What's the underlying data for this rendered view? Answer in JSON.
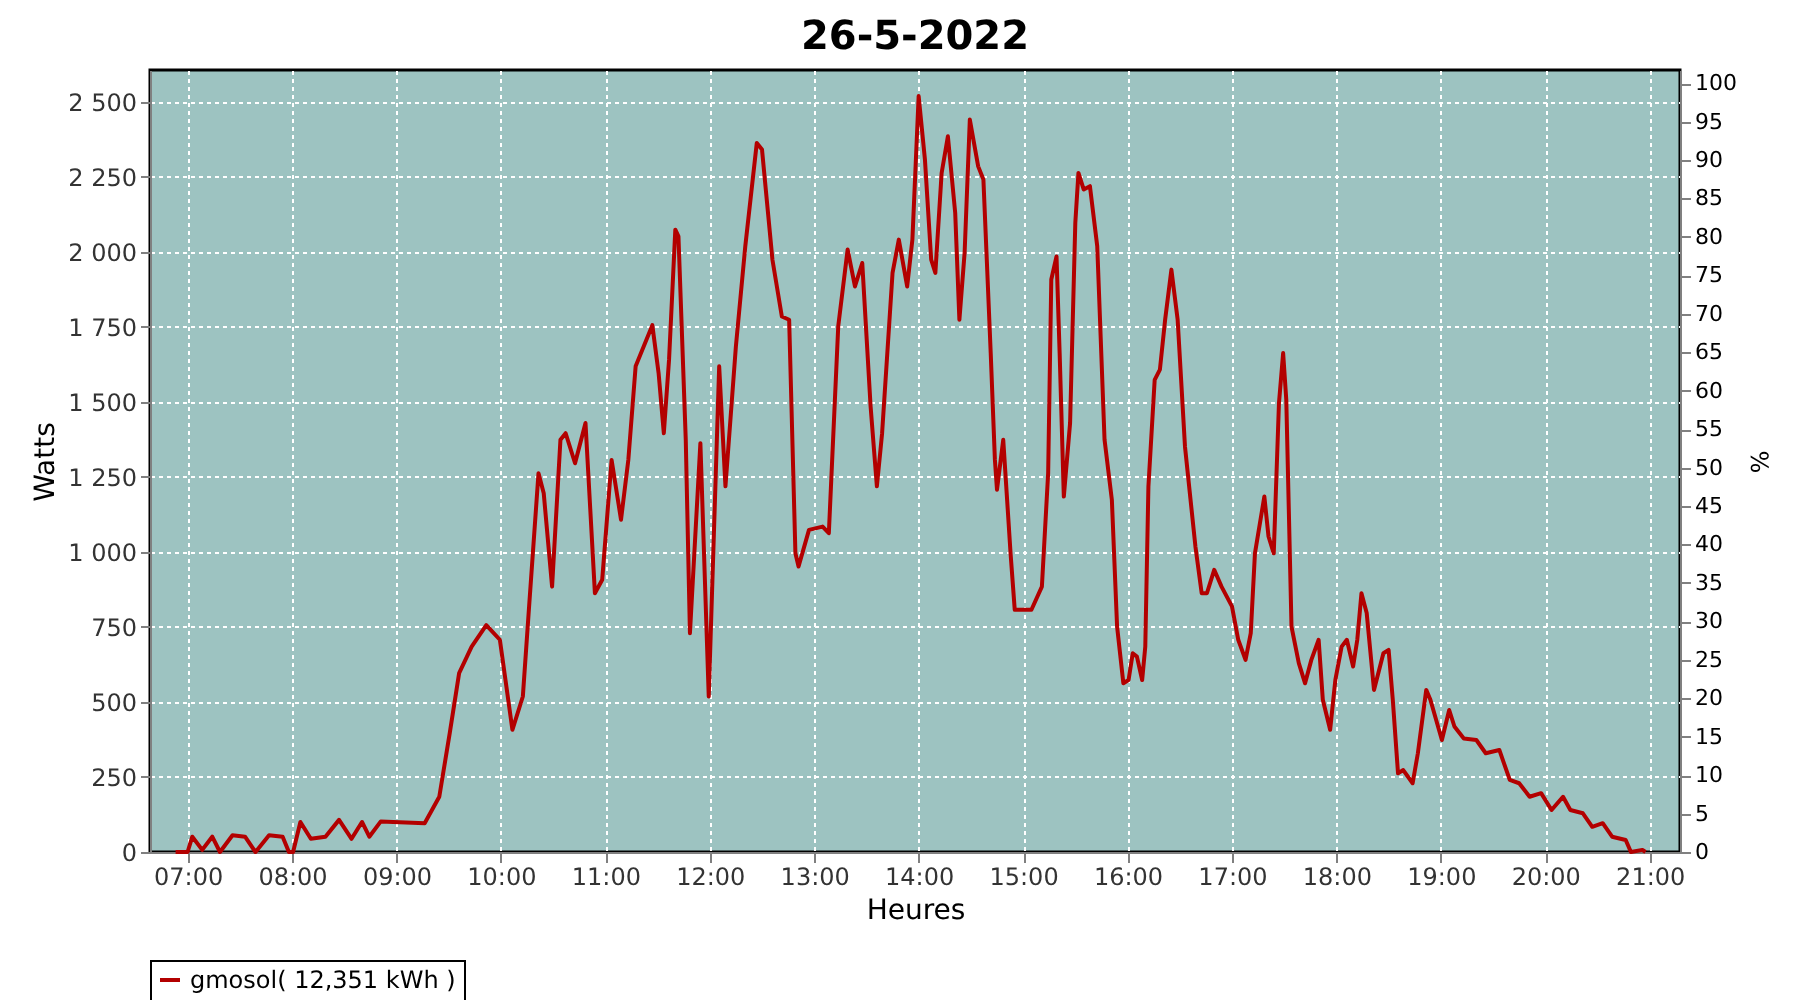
{
  "chart_data": {
    "type": "line",
    "title": "26-5-2022",
    "xlabel": "Heures",
    "ylabel": "Watts",
    "y2label": "%",
    "xlim": [
      6.64,
      21.29
    ],
    "xticks": [
      {
        "value": 7,
        "label": "07:00"
      },
      {
        "value": 8,
        "label": "08:00"
      },
      {
        "value": 9,
        "label": "09:00"
      },
      {
        "value": 10,
        "label": "10:00"
      },
      {
        "value": 11,
        "label": "11:00"
      },
      {
        "value": 12,
        "label": "12:00"
      },
      {
        "value": 13,
        "label": "13:00"
      },
      {
        "value": 14,
        "label": "14:00"
      },
      {
        "value": 15,
        "label": "15:00"
      },
      {
        "value": 16,
        "label": "16:00"
      },
      {
        "value": 17,
        "label": "17:00"
      },
      {
        "value": 18,
        "label": "18:00"
      },
      {
        "value": 19,
        "label": "19:00"
      },
      {
        "value": 20,
        "label": "20:00"
      },
      {
        "value": 21,
        "label": "21:00"
      }
    ],
    "ylim": [
      0,
      2605
    ],
    "yticks": [
      0,
      250,
      500,
      750,
      {
        "value": 1000,
        "label": "1 000"
      },
      {
        "value": 1250,
        "label": "1 250"
      },
      {
        "value": 1500,
        "label": "1 500"
      },
      {
        "value": 1750,
        "label": "1 750"
      },
      {
        "value": 2000,
        "label": "2 000"
      },
      {
        "value": 2250,
        "label": "2 250"
      },
      {
        "value": 2500,
        "label": "2 500"
      }
    ],
    "y2lim": [
      0,
      101.7
    ],
    "y2ticks": [
      0,
      5,
      10,
      15,
      20,
      25,
      30,
      35,
      40,
      45,
      50,
      55,
      60,
      65,
      70,
      75,
      80,
      85,
      90,
      95,
      100
    ],
    "grid": true,
    "legend": "bottom",
    "marker": "none",
    "line_style": "solid",
    "series": [
      {
        "name": "gmosol( 12,351 kWh )",
        "color": "#b30000",
        "x": [
          6.885,
          7.0,
          7.045,
          7.14,
          7.236,
          7.31,
          7.43,
          7.55,
          7.65,
          7.78,
          7.91,
          7.97,
          8.01,
          8.08,
          8.18,
          8.32,
          8.45,
          8.57,
          8.67,
          8.74,
          8.85,
          9.27,
          9.41,
          9.51,
          9.6,
          9.72,
          9.86,
          9.99,
          10.11,
          10.21,
          10.27,
          10.36,
          10.41,
          10.49,
          10.57,
          10.62,
          10.71,
          10.81,
          10.9,
          10.97,
          11.06,
          11.15,
          11.22,
          11.29,
          11.45,
          11.51,
          11.56,
          11.61,
          11.67,
          11.7,
          11.77,
          11.81,
          11.91,
          11.99,
          12.09,
          12.15,
          12.25,
          12.34,
          12.45,
          12.5,
          12.6,
          12.69,
          12.76,
          12.82,
          12.85,
          12.95,
          13.08,
          13.14,
          13.23,
          13.32,
          13.39,
          13.46,
          13.54,
          13.6,
          13.65,
          13.75,
          13.81,
          13.89,
          13.94,
          14.0,
          14.06,
          14.12,
          14.16,
          14.22,
          14.28,
          14.35,
          14.39,
          14.44,
          14.49,
          14.57,
          14.62,
          14.69,
          14.73,
          14.75,
          14.81,
          14.88,
          14.92,
          15.08,
          15.18,
          15.24,
          15.27,
          15.32,
          15.35,
          15.39,
          15.45,
          15.5,
          15.53,
          15.58,
          15.64,
          15.71,
          15.78,
          15.85,
          15.9,
          15.96,
          16.01,
          16.05,
          16.09,
          16.14,
          16.17,
          16.2,
          16.26,
          16.31,
          16.36,
          16.42,
          16.48,
          16.55,
          16.65,
          16.71,
          16.76,
          16.83,
          16.9,
          17.0,
          17.06,
          17.13,
          17.18,
          17.22,
          17.31,
          17.35,
          17.4,
          17.45,
          17.49,
          17.52,
          17.57,
          17.64,
          17.7,
          17.76,
          17.83,
          17.87,
          17.94,
          17.99,
          18.05,
          18.1,
          18.16,
          18.2,
          18.24,
          18.29,
          18.36,
          18.45,
          18.5,
          18.54,
          18.59,
          18.64,
          18.73,
          18.78,
          18.86,
          18.9,
          19.01,
          19.08,
          19.13,
          19.22,
          19.34,
          19.43,
          19.56,
          19.66,
          19.75,
          19.85,
          19.96,
          20.06,
          20.17,
          20.24,
          20.36,
          20.45,
          20.55,
          20.64,
          20.77,
          20.82,
          20.93,
          20.96
        ],
        "values": [
          0,
          0,
          51,
          7,
          51,
          0,
          56,
          51,
          0,
          56,
          51,
          0,
          0,
          100,
          44,
          51,
          107,
          44,
          100,
          51,
          102,
          96,
          184,
          396,
          596,
          684,
          756,
          707,
          407,
          518,
          818,
          1262,
          1195,
          884,
          1373,
          1395,
          1295,
          1429,
          862,
          907,
          1306,
          1107,
          1306,
          1618,
          1755,
          1595,
          1395,
          1640,
          2073,
          2051,
          1373,
          729,
          1362,
          518,
          1618,
          1218,
          1684,
          2018,
          2362,
          2340,
          1973,
          1784,
          1773,
          995,
          951,
          1073,
          1084,
          1062,
          1751,
          2007,
          1884,
          1962,
          1484,
          1218,
          1395,
          1929,
          2040,
          1884,
          2040,
          2518,
          2307,
          1973,
          1929,
          2262,
          2384,
          2129,
          1773,
          1996,
          2440,
          2284,
          2240,
          1662,
          1307,
          1207,
          1373,
          995,
          807,
          807,
          884,
          1262,
          1907,
          1984,
          1662,
          1184,
          1429,
          2096,
          2262,
          2207,
          2218,
          2018,
          1373,
          1173,
          751,
          562,
          573,
          662,
          651,
          573,
          684,
          1218,
          1573,
          1607,
          1773,
          1940,
          1773,
          1351,
          1018,
          862,
          862,
          940,
          884,
          818,
          707,
          640,
          729,
          995,
          1184,
          1051,
          995,
          1495,
          1662,
          1507,
          751,
          629,
          562,
          640,
          707,
          507,
          407,
          573,
          684,
          707,
          618,
          707,
          862,
          796,
          540,
          662,
          673,
          507,
          262,
          273,
          229,
          329,
          540,
          507,
          373,
          473,
          418,
          378,
          373,
          329,
          340,
          240,
          229,
          184,
          196,
          140,
          184,
          140,
          129,
          84,
          96,
          51,
          40,
          0,
          7,
          0
        ]
      }
    ]
  }
}
